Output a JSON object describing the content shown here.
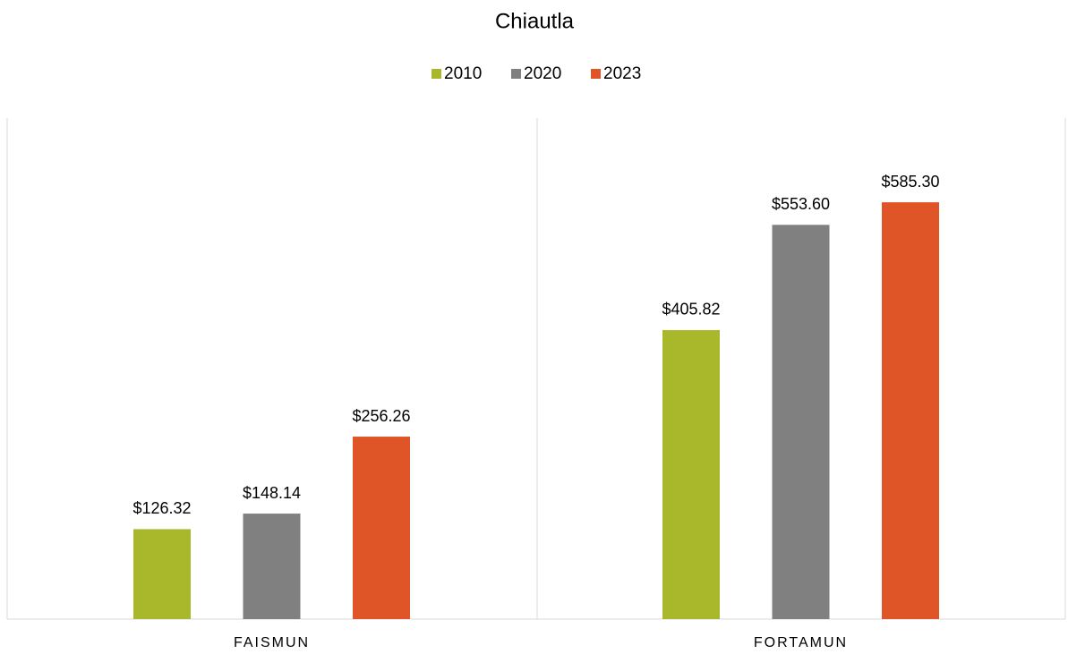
{
  "chart_data": {
    "type": "bar",
    "title": "Chiautla",
    "categories": [
      "FAISMUN",
      "FORTAMUN"
    ],
    "series": [
      {
        "name": "2010",
        "color": "#a8b82a",
        "values": [
          126.32,
          405.82
        ],
        "value_labels": [
          "$126.32",
          "$405.82"
        ]
      },
      {
        "name": "2020",
        "color": "#808080",
        "values": [
          148.14,
          553.6
        ],
        "value_labels": [
          "$148.14",
          "$553.60"
        ]
      },
      {
        "name": "2023",
        "color": "#e05528",
        "values": [
          256.26,
          585.3
        ],
        "value_labels": [
          "$256.26",
          "$585.30"
        ]
      }
    ],
    "legend": "top"
  }
}
